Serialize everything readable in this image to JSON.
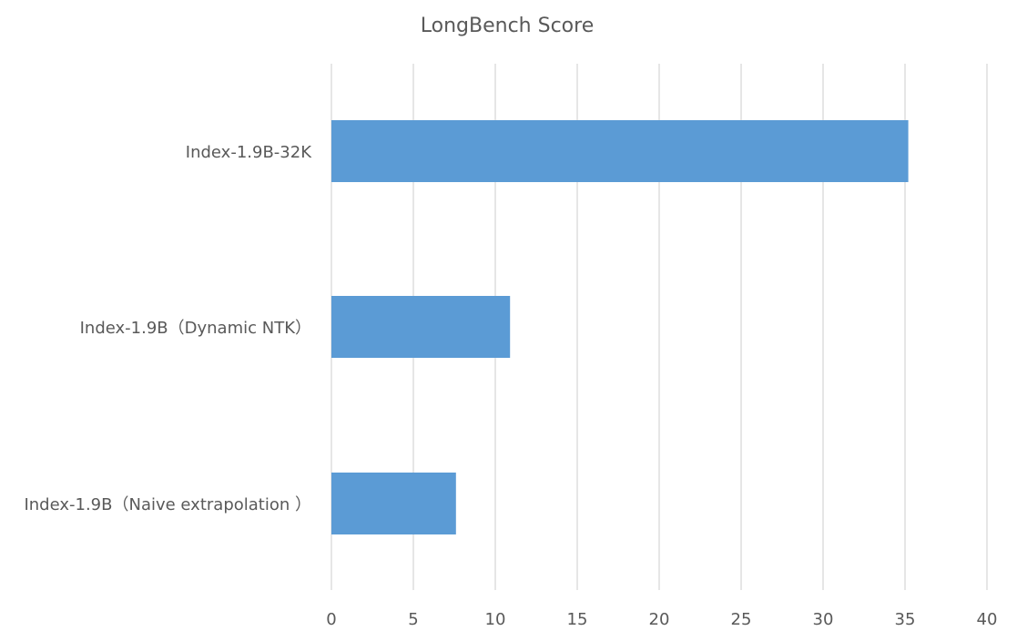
{
  "chart_data": {
    "type": "bar",
    "orientation": "horizontal",
    "title": "LongBench Score",
    "xlabel": "",
    "ylabel": "",
    "categories": [
      "Index-1.9B-32K",
      "Index-1.9B（Dynamic NTK）",
      "Index-1.9B（Naive extrapolation ）"
    ],
    "values": [
      35.2,
      10.9,
      7.6
    ],
    "xlim": [
      0,
      40
    ],
    "x_ticks": [
      "0",
      "5",
      "10",
      "15",
      "20",
      "25",
      "30",
      "35",
      "40"
    ],
    "grid": true,
    "legend": "none",
    "bar_color": "#5b9bd5",
    "grid_color": "#d9d9d9",
    "text_color": "#595959"
  }
}
